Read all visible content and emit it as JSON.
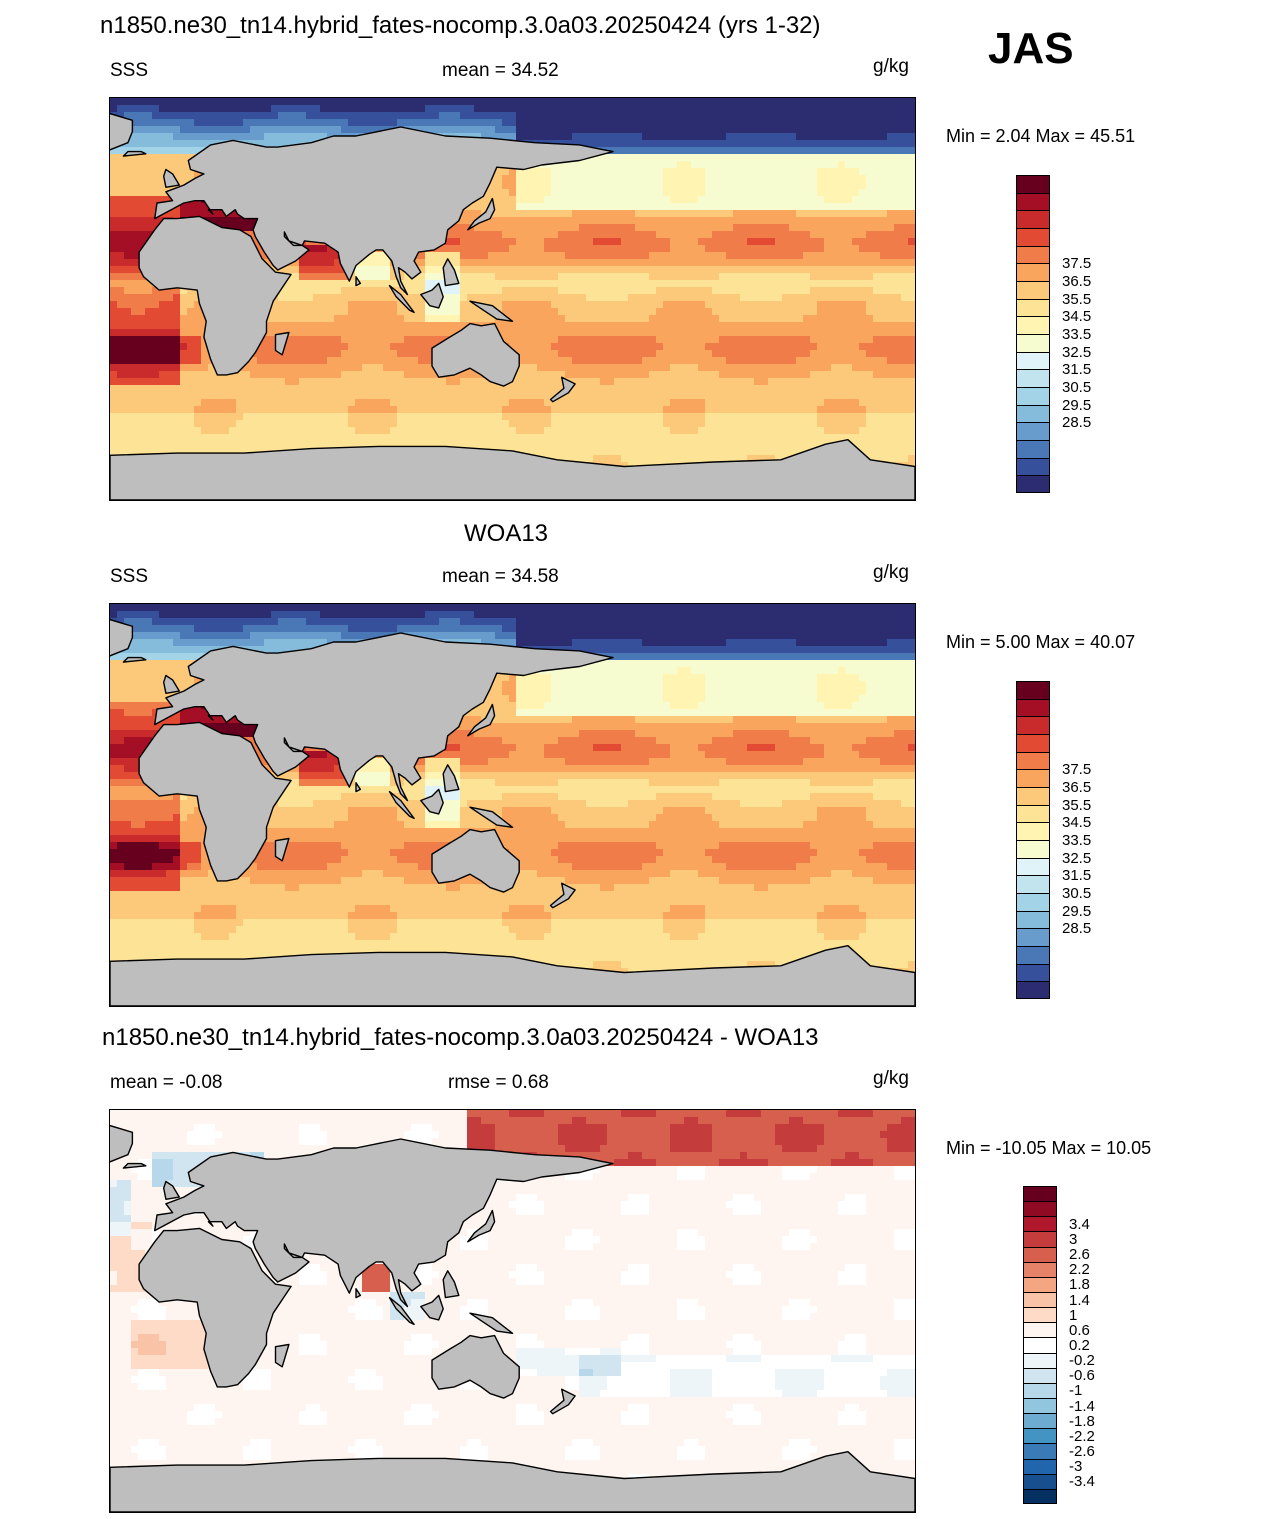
{
  "season": "JAS",
  "panels": [
    {
      "id": "model",
      "title": "n1850.ne30_tn14.hybrid_fates-nocomp.3.0a03.20250424 (yrs 1-32)",
      "left_label": "SSS",
      "center_label": "mean =  34.52",
      "units": "g/kg",
      "minmax": "Min =   2.04 Max =  45.51",
      "colorbar": {
        "ticks": [
          "37.5",
          "36.5",
          "35.5",
          "34.5",
          "33.5",
          "32.5",
          "31.5",
          "30.5",
          "29.5",
          "28.5"
        ],
        "colors": [
          "#67001f",
          "#a50f26",
          "#c92a2b",
          "#e34a33",
          "#f07c4a",
          "#f9a55d",
          "#fcc879",
          "#fde396",
          "#fff4b1",
          "#f7fbd0",
          "#e0f3f8",
          "#c1e4ef",
          "#a3d3e6",
          "#85bcdb",
          "#679ccc",
          "#4a78b6",
          "#36509c",
          "#2b2d70"
        ]
      },
      "palette": "seq"
    },
    {
      "id": "obs",
      "title": "WOA13",
      "left_label": "SSS",
      "center_label": "mean =  34.58",
      "units": "g/kg",
      "minmax": "Min =   5.00 Max =  40.07",
      "colorbar": {
        "ticks": [
          "37.5",
          "36.5",
          "35.5",
          "34.5",
          "33.5",
          "32.5",
          "31.5",
          "30.5",
          "29.5",
          "28.5"
        ],
        "colors": [
          "#67001f",
          "#a50f26",
          "#c92a2b",
          "#e34a33",
          "#f07c4a",
          "#f9a55d",
          "#fcc879",
          "#fde396",
          "#fff4b1",
          "#f7fbd0",
          "#e0f3f8",
          "#c1e4ef",
          "#a3d3e6",
          "#85bcdb",
          "#679ccc",
          "#4a78b6",
          "#36509c",
          "#2b2d70"
        ]
      },
      "palette": "seq"
    },
    {
      "id": "diff",
      "title": "n1850.ne30_tn14.hybrid_fates-nocomp.3.0a03.20250424 - WOA13",
      "left_label": "mean =  -0.08",
      "center_label": "rmse =   0.68",
      "units": "g/kg",
      "minmax": "Min = -10.05 Max =  10.05",
      "colorbar": {
        "ticks": [
          "3.4",
          "3",
          "2.6",
          "2.2",
          "1.8",
          "1.4",
          "1",
          "0.6",
          "0.2",
          "-0.2",
          "-0.6",
          "-1",
          "-1.4",
          "-1.8",
          "-2.2",
          "-2.6",
          "-3",
          "-3.4"
        ],
        "colors": [
          "#67001f",
          "#8f0a22",
          "#b2182b",
          "#c43c3c",
          "#d6604d",
          "#e58268",
          "#f4a582",
          "#f8c3a6",
          "#fddbc7",
          "#fff5f0",
          "#ffffff",
          "#eef5f9",
          "#d1e5f0",
          "#b7d7ea",
          "#92c5de",
          "#6eabd1",
          "#4393c3",
          "#3a7ab6",
          "#2166ac",
          "#174f8f",
          "#053061"
        ]
      },
      "palette": "div"
    }
  ]
}
